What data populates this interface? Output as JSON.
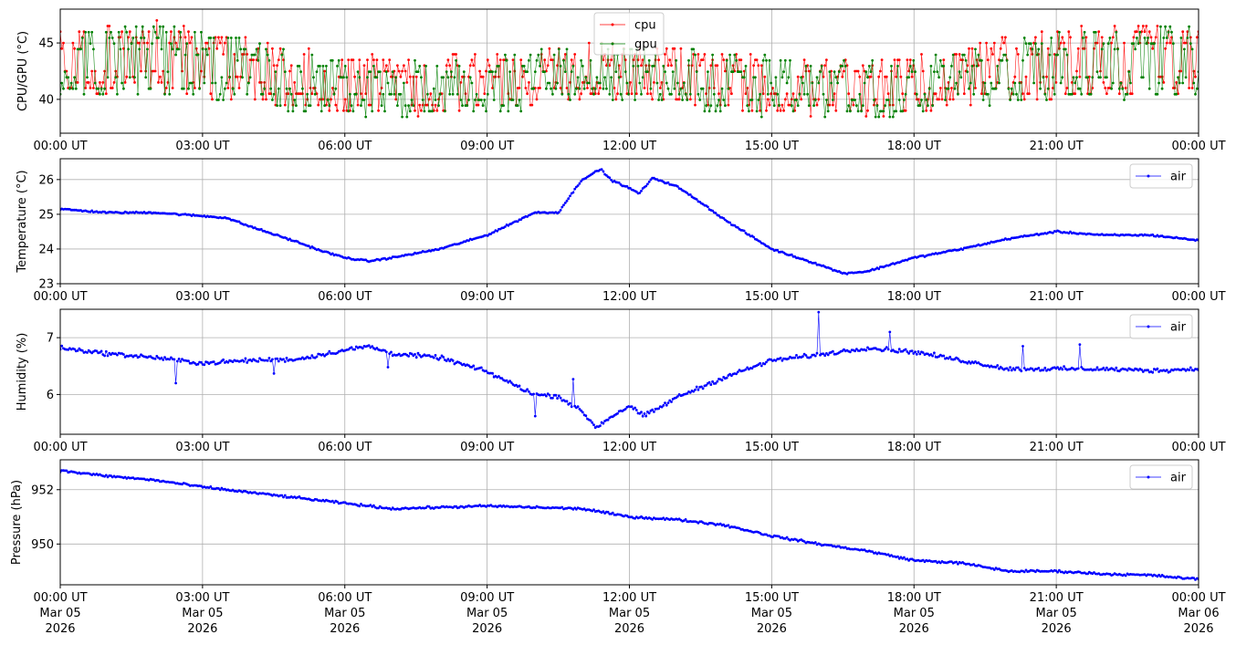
{
  "x_tick_labels": [
    "00:00 UT",
    "03:00 UT",
    "06:00 UT",
    "09:00 UT",
    "12:00 UT",
    "15:00 UT",
    "18:00 UT",
    "21:00 UT",
    "00:00 UT"
  ],
  "x_date_lines": [
    "Mar 05",
    "Mar 05",
    "Mar 05",
    "Mar 05",
    "Mar 05",
    "Mar 05",
    "Mar 05",
    "Mar 05",
    "Mar 06"
  ],
  "x_year_lines": [
    "2026",
    "2026",
    "2026",
    "2026",
    "2026",
    "2026",
    "2026",
    "2026",
    "2026"
  ],
  "colors": {
    "cpu": "#ff0000",
    "gpu": "#008000",
    "air": "#0000ff",
    "grid": "#b0b0b0"
  },
  "chart_data": [
    {
      "type": "line",
      "ylabel": "CPU/GPU (°C)",
      "xlim": [
        "2026-03-05 00:00",
        "2026-03-06 00:00"
      ],
      "ylim": [
        37,
        48
      ],
      "yticks": [
        40,
        45
      ],
      "legend": "top-center",
      "grid": true,
      "x_hours": [
        0,
        1,
        2,
        3,
        4,
        5,
        6,
        7,
        8,
        9,
        10,
        11,
        12,
        13,
        14,
        15,
        16,
        17,
        18,
        19,
        20,
        21,
        22,
        23,
        24
      ],
      "series": [
        {
          "name": "cpu",
          "color": "#ff0000",
          "low": [
            40.5,
            40.5,
            40.5,
            40.2,
            40.0,
            39.2,
            38.8,
            38.7,
            38.7,
            38.8,
            39.5,
            40.0,
            40.0,
            39.8,
            39.0,
            38.7,
            38.5,
            38.4,
            38.8,
            39.5,
            40.0,
            40.2,
            40.3,
            40.4,
            40.5
          ],
          "high": [
            46.5,
            46.7,
            46.8,
            46.3,
            45.5,
            44.5,
            44.0,
            43.8,
            43.8,
            44.0,
            44.5,
            45.0,
            45.0,
            44.8,
            44.3,
            44.0,
            43.8,
            43.7,
            44.0,
            44.5,
            45.5,
            46.2,
            46.6,
            46.7,
            46.5
          ]
        },
        {
          "name": "gpu",
          "color": "#008000",
          "low": [
            40.3,
            40.3,
            40.3,
            40.0,
            39.8,
            39.0,
            38.6,
            38.6,
            38.6,
            38.7,
            39.3,
            39.8,
            39.8,
            39.6,
            38.8,
            38.6,
            38.4,
            38.3,
            38.7,
            39.3,
            39.8,
            40.0,
            40.1,
            40.2,
            40.3
          ],
          "high": [
            46.3,
            46.5,
            46.6,
            46.1,
            45.3,
            44.3,
            43.8,
            43.6,
            43.6,
            43.8,
            44.3,
            44.8,
            44.8,
            44.6,
            44.1,
            43.8,
            43.6,
            43.5,
            43.8,
            44.3,
            45.3,
            46.0,
            46.4,
            46.5,
            46.3
          ]
        }
      ]
    },
    {
      "type": "line",
      "ylabel": "Temperature (°C)",
      "xlim": [
        "2026-03-05 00:00",
        "2026-03-06 00:00"
      ],
      "ylim": [
        23,
        26.6
      ],
      "yticks": [
        23,
        24,
        25,
        26
      ],
      "legend": "top-right",
      "grid": true,
      "series": [
        {
          "name": "air",
          "color": "#0000ff",
          "x_hours": [
            0,
            1,
            2,
            3,
            3.5,
            4,
            5,
            5.5,
            6,
            6.5,
            7,
            8,
            9,
            10,
            10.5,
            11,
            11.4,
            11.6,
            12,
            12.2,
            12.5,
            13,
            13.5,
            14,
            15,
            16,
            16.5,
            17,
            18,
            19,
            20,
            20.5,
            21,
            22,
            23,
            24
          ],
          "values": [
            25.15,
            25.05,
            25.05,
            24.95,
            24.9,
            24.65,
            24.2,
            23.95,
            23.75,
            23.65,
            23.75,
            24.0,
            24.4,
            25.05,
            25.05,
            26.0,
            26.3,
            26.0,
            25.75,
            25.6,
            26.05,
            25.8,
            25.35,
            24.85,
            24.0,
            23.55,
            23.3,
            23.35,
            23.75,
            24.0,
            24.3,
            24.4,
            24.5,
            24.4,
            24.4,
            24.25
          ]
        }
      ]
    },
    {
      "type": "line",
      "ylabel": "Humidity (%)",
      "xlim": [
        "2026-03-05 00:00",
        "2026-03-06 00:00"
      ],
      "ylim": [
        5.3,
        7.5
      ],
      "yticks": [
        6,
        7
      ],
      "legend": "top-right",
      "grid": true,
      "series": [
        {
          "name": "air",
          "color": "#0000ff",
          "x_hours": [
            0,
            1,
            2,
            3,
            4,
            5,
            6,
            6.5,
            7,
            8,
            9,
            10,
            10.5,
            11,
            11.3,
            11.6,
            12,
            12.3,
            12.6,
            13,
            14,
            15,
            16,
            17,
            18,
            19,
            20,
            21,
            22,
            23,
            24
          ],
          "values": [
            6.82,
            6.72,
            6.65,
            6.55,
            6.6,
            6.62,
            6.78,
            6.85,
            6.72,
            6.65,
            6.4,
            6.0,
            5.97,
            5.7,
            5.42,
            5.6,
            5.8,
            5.62,
            5.75,
            5.95,
            6.3,
            6.6,
            6.7,
            6.82,
            6.75,
            6.6,
            6.45,
            6.45,
            6.45,
            6.42,
            6.45
          ]
        }
      ],
      "spikes": [
        [
          2.45,
          6.2
        ],
        [
          4.5,
          6.37
        ],
        [
          6.9,
          6.48
        ],
        [
          10.0,
          5.62
        ],
        [
          10.8,
          6.27
        ],
        [
          16.0,
          7.45
        ],
        [
          17.5,
          7.1
        ],
        [
          20.3,
          6.85
        ],
        [
          21.5,
          6.88
        ]
      ]
    },
    {
      "type": "line",
      "ylabel": "Pressure (hPa)",
      "xlim": [
        "2026-03-05 00:00",
        "2026-03-06 00:00"
      ],
      "ylim": [
        948.5,
        953.1
      ],
      "yticks": [
        950,
        952
      ],
      "legend": "top-right",
      "grid": true,
      "series": [
        {
          "name": "air",
          "color": "#0000ff",
          "x_hours": [
            0,
            1,
            2,
            3,
            4,
            5,
            6,
            7,
            8,
            9,
            10,
            11,
            12,
            13,
            14,
            15,
            16,
            17,
            18,
            19,
            20,
            21,
            22,
            23,
            24
          ],
          "values": [
            952.7,
            952.5,
            952.35,
            952.1,
            951.9,
            951.7,
            951.5,
            951.3,
            951.35,
            951.4,
            951.35,
            951.3,
            951.0,
            950.9,
            950.7,
            950.3,
            950.0,
            949.75,
            949.4,
            949.3,
            949.0,
            949.0,
            948.9,
            948.85,
            948.7
          ]
        }
      ]
    }
  ]
}
